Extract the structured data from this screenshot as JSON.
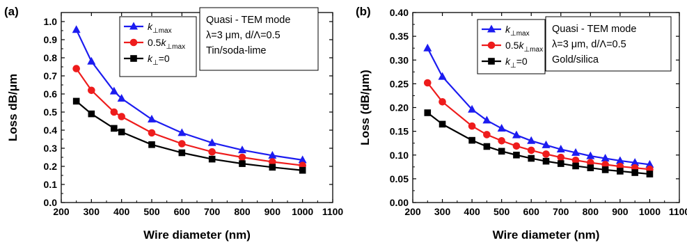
{
  "chart_data": [
    {
      "type": "line",
      "panel_label": "(a)",
      "xlabel": "Wire diameter (nm)",
      "ylabel": "Loss dB/μm",
      "xlim": [
        200,
        1100
      ],
      "ylim": [
        0.0,
        1.05
      ],
      "x_ticks": [
        "200",
        "300",
        "400",
        "500",
        "600",
        "700",
        "800",
        "900",
        "1000",
        "1100"
      ],
      "y_ticks": [
        "0.0",
        "0.1",
        "0.2",
        "0.3",
        "0.4",
        "0.5",
        "0.6",
        "0.7",
        "0.8",
        "0.9",
        "1.0"
      ],
      "x": [
        250,
        300,
        375,
        400,
        500,
        600,
        700,
        800,
        900,
        1000
      ],
      "series": [
        {
          "legend_main": "k",
          "legend_sub": "⊥max",
          "legend_prefix": "",
          "legend_suffix": "",
          "color": "#1c1cf0",
          "marker": "triangle",
          "values": [
            0.955,
            0.78,
            0.615,
            0.575,
            0.46,
            0.385,
            0.33,
            0.29,
            0.26,
            0.235
          ]
        },
        {
          "legend_main": "k",
          "legend_sub": "⊥max",
          "legend_prefix": "0.5",
          "legend_suffix": "",
          "color": "#ee1c1c",
          "marker": "circle",
          "values": [
            0.74,
            0.62,
            0.5,
            0.475,
            0.385,
            0.325,
            0.28,
            0.25,
            0.225,
            0.205
          ]
        },
        {
          "legend_main": "k",
          "legend_sub": "⊥",
          "legend_prefix": "",
          "legend_suffix": "=0",
          "color": "#000000",
          "marker": "square",
          "values": [
            0.56,
            0.49,
            0.41,
            0.39,
            0.32,
            0.275,
            0.24,
            0.215,
            0.195,
            0.178
          ]
        }
      ],
      "annotation": [
        "Quasi - TEM mode",
        "λ=3 μm, d/Λ=0.5",
        "Tin/soda-lime"
      ]
    },
    {
      "type": "line",
      "panel_label": "(b)",
      "xlabel": "Wire diameter (nm)",
      "ylabel": "Loss (dB/μm)",
      "xlim": [
        200,
        1100
      ],
      "ylim": [
        0.0,
        0.4
      ],
      "x_ticks": [
        "200",
        "300",
        "400",
        "500",
        "600",
        "700",
        "800",
        "900",
        "1000",
        "1100"
      ],
      "y_ticks": [
        "0.00",
        "0.05",
        "0.10",
        "0.15",
        "0.20",
        "0.25",
        "0.30",
        "0.35",
        "0.40"
      ],
      "x": [
        250,
        300,
        400,
        450,
        500,
        550,
        600,
        650,
        700,
        750,
        800,
        850,
        900,
        950,
        1000
      ],
      "series": [
        {
          "legend_main": "k",
          "legend_sub": "⊥max",
          "legend_prefix": "",
          "legend_suffix": "",
          "color": "#1c1cf0",
          "marker": "triangle",
          "values": [
            0.325,
            0.265,
            0.196,
            0.173,
            0.156,
            0.142,
            0.13,
            0.121,
            0.112,
            0.105,
            0.098,
            0.093,
            0.088,
            0.084,
            0.08
          ]
        },
        {
          "legend_main": "k",
          "legend_sub": "⊥max",
          "legend_prefix": "0.5",
          "legend_suffix": "",
          "color": "#ee1c1c",
          "marker": "circle",
          "values": [
            0.252,
            0.212,
            0.161,
            0.143,
            0.13,
            0.119,
            0.11,
            0.102,
            0.095,
            0.089,
            0.084,
            0.08,
            0.076,
            0.073,
            0.07
          ]
        },
        {
          "legend_main": "k",
          "legend_sub": "⊥",
          "legend_prefix": "",
          "legend_suffix": "=0",
          "color": "#000000",
          "marker": "square",
          "values": [
            0.189,
            0.165,
            0.131,
            0.118,
            0.108,
            0.1,
            0.093,
            0.087,
            0.082,
            0.077,
            0.073,
            0.069,
            0.066,
            0.063,
            0.06
          ]
        }
      ],
      "annotation": [
        "Quasi - TEM mode",
        "λ=3 μm, d/Λ=0.5",
        "Gold/silica"
      ]
    }
  ]
}
